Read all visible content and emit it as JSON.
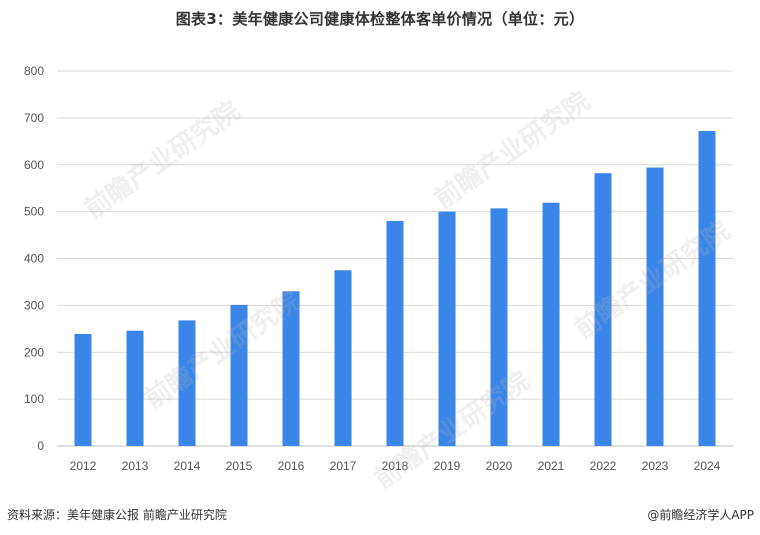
{
  "header": {
    "title": "图表3：美年健康公司健康体检整体客单价情况（单位：元）"
  },
  "footer": {
    "source": "资料来源：美年健康公报  前瞻产业研究院",
    "brand": "@前瞻经济学人APP"
  },
  "watermark": {
    "text": "前瞻产业研究院"
  },
  "colors": {
    "bar": "#3a86e8",
    "grid": "#d9d9d9",
    "axis": "#bfbfbf"
  },
  "chart_data": {
    "type": "bar",
    "title": "图表3：美年健康公司健康体检整体客单价情况（单位：元）",
    "xlabel": "",
    "ylabel": "",
    "categories": [
      "2012",
      "2013",
      "2014",
      "2015",
      "2016",
      "2017",
      "2018",
      "2019",
      "2020",
      "2021",
      "2022",
      "2023",
      "2024"
    ],
    "series": [
      {
        "values": [
          239,
          246,
          268,
          301,
          330,
          375,
          480,
          500,
          507,
          519,
          582,
          594,
          672
        ]
      }
    ],
    "ylim": [
      0,
      800
    ],
    "yticks": [
      0,
      100,
      200,
      300,
      400,
      500,
      600,
      700,
      800
    ],
    "grid": true,
    "legend": "none"
  }
}
